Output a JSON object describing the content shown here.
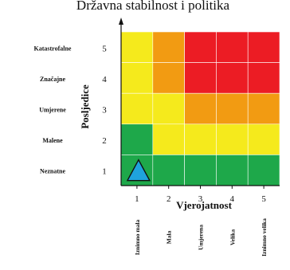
{
  "title": "Državna stabilnost i politika",
  "y_axis": {
    "label": "Posljedice",
    "levels": [
      {
        "value": 5,
        "label": "Katastrofalne"
      },
      {
        "value": 4,
        "label": "Značajne"
      },
      {
        "value": 3,
        "label": "Umjerene"
      },
      {
        "value": 2,
        "label": "Malene"
      },
      {
        "value": 1,
        "label": "Neznatne"
      }
    ]
  },
  "x_axis": {
    "label": "Vjerojatnost",
    "levels": [
      {
        "value": 1,
        "label": "Iznimno mala"
      },
      {
        "value": 2,
        "label": "Mala"
      },
      {
        "value": 3,
        "label": "Umjerena"
      },
      {
        "value": 4,
        "label": "Velika"
      },
      {
        "value": 5,
        "label": "Iznimno velika"
      }
    ]
  },
  "colors": {
    "green": "#1ea84a",
    "yellow": "#f5ea1c",
    "orange": "#f29b12",
    "red": "#ec1c24",
    "marker": "#1fa3dd"
  },
  "matrix_rows": [
    {
      "consequence": 5,
      "cells": [
        "yellow",
        "orange",
        "red",
        "red",
        "red"
      ]
    },
    {
      "consequence": 4,
      "cells": [
        "yellow",
        "orange",
        "red",
        "red",
        "red"
      ]
    },
    {
      "consequence": 3,
      "cells": [
        "yellow",
        "yellow",
        "orange",
        "orange",
        "orange"
      ]
    },
    {
      "consequence": 2,
      "cells": [
        "green",
        "yellow",
        "yellow",
        "yellow",
        "yellow"
      ]
    },
    {
      "consequence": 1,
      "cells": [
        "green",
        "green",
        "green",
        "green",
        "green"
      ]
    }
  ],
  "marker": {
    "probability": 1,
    "consequence": 1,
    "shape": "triangle"
  }
}
